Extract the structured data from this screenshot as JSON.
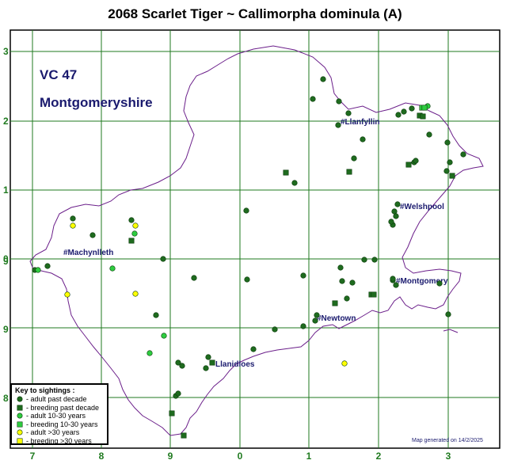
{
  "title": "2068 Scarlet Tiger ~ Callimorpha dominula (A)",
  "vc_code": "VC 47",
  "vc_name": "Montgomeryshire",
  "footnote": "Map generated on 14/2/2025",
  "x_labels": [
    "7",
    "8",
    "9",
    "0",
    "1",
    "2",
    "3"
  ],
  "y_labels": [
    "3",
    "2",
    "1",
    "0",
    "9",
    "9",
    "8"
  ],
  "towns": [
    "#Llanfyllin",
    "#Welshpool",
    "#Machynlleth",
    "#Montgomery",
    "#Newtown",
    "Llanidloes"
  ],
  "legend": {
    "title": "Key to sightings :",
    "items": [
      {
        "label": "- adult past decade",
        "symbol": "circle",
        "color": "#1f6b1f"
      },
      {
        "label": "- breeding past decade",
        "symbol": "square",
        "color": "#1f6b1f"
      },
      {
        "label": "- adult 10-30 years",
        "symbol": "circle",
        "color": "#2ecc40"
      },
      {
        "label": "- breeding 10-30 years",
        "symbol": "square",
        "color": "#2ecc40"
      },
      {
        "label": "- adult >30 years",
        "symbol": "circle",
        "color": "#ffff00"
      },
      {
        "label": "- breeding >30 years",
        "symbol": "square",
        "color": "#ffff00"
      }
    ]
  },
  "colors": {
    "grid": "#1f7a1f",
    "boundary": "#6b1f8a",
    "label_text": "#1a1a6e",
    "axis_text": "#1f7a1f",
    "recent": "#1f6b1f",
    "mid": "#2ecc40",
    "old": "#ffff00"
  }
}
